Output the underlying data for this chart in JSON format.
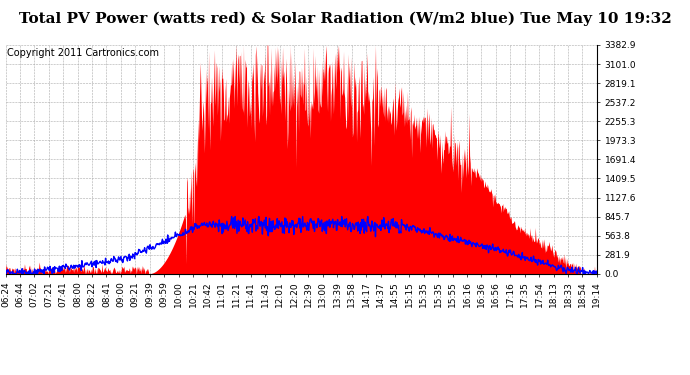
{
  "title": "Total PV Power (watts red) & Solar Radiation (W/m2 blue) Tue May 10 19:32",
  "copyright": "Copyright 2011 Cartronics.com",
  "ymax": 3382.9,
  "yticks": [
    0.0,
    281.9,
    563.8,
    845.7,
    1127.6,
    1409.5,
    1691.4,
    1973.3,
    2255.3,
    2537.2,
    2819.1,
    3101.0,
    3382.9
  ],
  "bg_color": "#ffffff",
  "grid_color": "#aaaaaa",
  "fill_color": "#ff0000",
  "line_color": "#0000ff",
  "title_fontsize": 11,
  "copyright_fontsize": 7,
  "tick_fontsize": 6.5,
  "xtick_labels": [
    "06:24",
    "06:44",
    "07:02",
    "07:21",
    "07:41",
    "08:00",
    "08:22",
    "08:41",
    "09:00",
    "09:21",
    "09:39",
    "09:59",
    "10:00",
    "10:21",
    "10:42",
    "11:01",
    "11:21",
    "11:41",
    "11:43",
    "12:01",
    "12:20",
    "12:39",
    "13:00",
    "13:39",
    "13:58",
    "14:17",
    "14:37",
    "14:55",
    "15:15",
    "15:35",
    "15:35",
    "15:55",
    "16:16",
    "16:36",
    "16:56",
    "17:16",
    "17:35",
    "17:54",
    "18:13",
    "18:33",
    "18:54",
    "19:14"
  ]
}
